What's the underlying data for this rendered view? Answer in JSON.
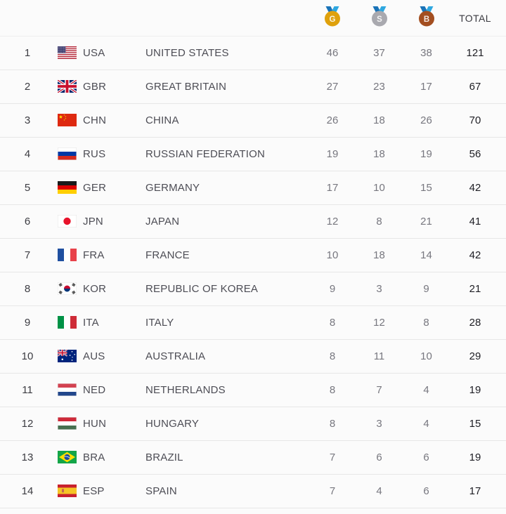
{
  "page": {
    "background": "#FBFBFB",
    "divider_color": "#E7E7E7"
  },
  "header": {
    "total_label": "TOTAL",
    "ribbon": {
      "dark": "#1973B8",
      "light": "#2EA7E0"
    },
    "medals": [
      {
        "name": "gold",
        "letter": "G",
        "circle": "#DFA householder10C"
      },
      {
        "name": "silver",
        "letter": "S",
        "circle": "#A9A9AF"
      },
      {
        "name": "bronze",
        "letter": "B",
        "circle": "#A34E20"
      }
    ]
  },
  "rows": [
    {
      "rank": "1",
      "code": "USA",
      "country": "UNITED STATES",
      "gold": "46",
      "silver": "37",
      "bronze": "38",
      "total": "121"
    },
    {
      "rank": "2",
      "code": "GBR",
      "country": "GREAT BRITAIN",
      "gold": "27",
      "silver": "23",
      "bronze": "17",
      "total": "67"
    },
    {
      "rank": "3",
      "code": "CHN",
      "country": "CHINA",
      "gold": "26",
      "silver": "18",
      "bronze": "26",
      "total": "70"
    },
    {
      "rank": "4",
      "code": "RUS",
      "country": "RUSSIAN FEDERATION",
      "gold": "19",
      "silver": "18",
      "bronze": "19",
      "total": "56"
    },
    {
      "rank": "5",
      "code": "GER",
      "country": "GERMANY",
      "gold": "17",
      "silver": "10",
      "bronze": "15",
      "total": "42"
    },
    {
      "rank": "6",
      "code": "JPN",
      "country": "JAPAN",
      "gold": "12",
      "silver": "8",
      "bronze": "21",
      "total": "41"
    },
    {
      "rank": "7",
      "code": "FRA",
      "country": "FRANCE",
      "gold": "10",
      "silver": "18",
      "bronze": "14",
      "total": "42"
    },
    {
      "rank": "8",
      "code": "KOR",
      "country": "REPUBLIC OF KOREA",
      "gold": "9",
      "silver": "3",
      "bronze": "9",
      "total": "21"
    },
    {
      "rank": "9",
      "code": "ITA",
      "country": "ITALY",
      "gold": "8",
      "silver": "12",
      "bronze": "8",
      "total": "28"
    },
    {
      "rank": "10",
      "code": "AUS",
      "country": "AUSTRALIA",
      "gold": "8",
      "silver": "11",
      "bronze": "10",
      "total": "29"
    },
    {
      "rank": "11",
      "code": "NED",
      "country": "NETHERLANDS",
      "gold": "8",
      "silver": "7",
      "bronze": "4",
      "total": "19"
    },
    {
      "rank": "12",
      "code": "HUN",
      "country": "HUNGARY",
      "gold": "8",
      "silver": "3",
      "bronze": "4",
      "total": "15"
    },
    {
      "rank": "13",
      "code": "BRA",
      "country": "BRAZIL",
      "gold": "7",
      "silver": "6",
      "bronze": "6",
      "total": "19"
    },
    {
      "rank": "14",
      "code": "ESP",
      "country": "SPAIN",
      "gold": "7",
      "silver": "4",
      "bronze": "6",
      "total": "17"
    }
  ]
}
